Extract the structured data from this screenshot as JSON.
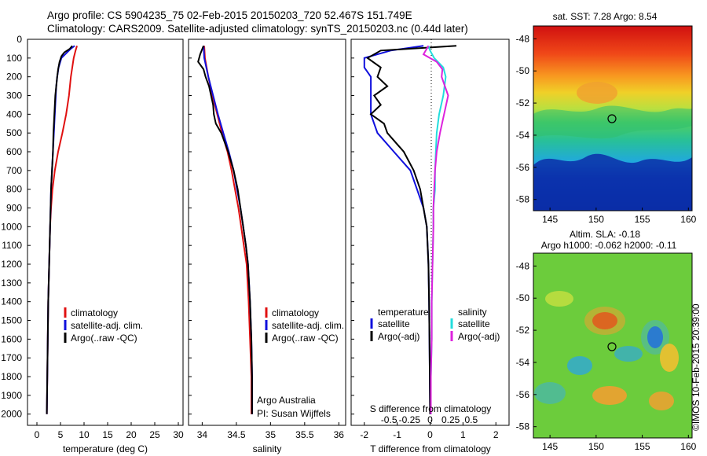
{
  "header": {
    "line1": "Argo profile: CS 5904235_75 02-Feb-2015 20150203_720 52.467S 151.749E",
    "line2": "Climatology: CARS2009. Satellite-adjusted climatology: synTS_20150203.nc (0.44d later)"
  },
  "colors": {
    "climatology": "#e01010",
    "satellite": "#1010dd",
    "argo": "#000000",
    "satellite_salinity": "#22dddd",
    "argo_salinity": "#dd22dd"
  },
  "depth_axis": {
    "ticks": [
      "0",
      "100",
      "200",
      "300",
      "400",
      "500",
      "600",
      "700",
      "800",
      "900",
      "1000",
      "1100",
      "1200",
      "1300",
      "1400",
      "1500",
      "1600",
      "1700",
      "1800",
      "1900",
      "2000"
    ]
  },
  "chart_data": [
    {
      "type": "line",
      "name": "temperature",
      "xlabel": "temperature (deg C)",
      "xlim": [
        -2,
        31
      ],
      "ylim": [
        0,
        2060
      ],
      "xticks": [
        "0",
        "5",
        "10",
        "15",
        "20",
        "25",
        "30"
      ],
      "legend": [
        "climatology",
        "satellite-adj. clim.",
        "Argo(..raw -QC)"
      ],
      "series": [
        {
          "name": "climatology",
          "depth": [
            35,
            60,
            100,
            150,
            200,
            300,
            400,
            500,
            600,
            700,
            800,
            900,
            1000,
            1200,
            1400,
            1600,
            1800,
            2000
          ],
          "values": [
            8.5,
            8.2,
            7.8,
            7.5,
            7.2,
            6.8,
            6.2,
            5.4,
            4.5,
            3.8,
            3.3,
            3.0,
            2.8,
            2.6,
            2.4,
            2.3,
            2.2,
            2.1
          ]
        },
        {
          "name": "satellite-adj. clim.",
          "depth": [
            35,
            50,
            80,
            100,
            150,
            200,
            250,
            300,
            400,
            500,
            600,
            700,
            800,
            900,
            1000,
            1200,
            1400,
            1600,
            1800,
            2000
          ],
          "values": [
            8.0,
            7.2,
            6.0,
            5.2,
            4.6,
            4.3,
            4.1,
            4.0,
            3.8,
            3.6,
            3.4,
            3.2,
            3.0,
            2.9,
            2.8,
            2.6,
            2.4,
            2.3,
            2.2,
            2.1
          ]
        },
        {
          "name": "Argo(..raw -QC)",
          "depth": [
            35,
            50,
            70,
            90,
            120,
            160,
            200,
            250,
            300,
            400,
            500,
            600,
            700,
            800,
            900,
            1000,
            1200,
            1400,
            1600,
            1800,
            2000
          ],
          "values": [
            7.5,
            7.0,
            5.8,
            5.2,
            4.8,
            4.5,
            4.3,
            4.1,
            3.9,
            3.7,
            3.5,
            3.4,
            3.2,
            3.0,
            2.9,
            2.8,
            2.6,
            2.4,
            2.3,
            2.2,
            2.1
          ]
        }
      ]
    },
    {
      "type": "line",
      "name": "salinity",
      "xlabel": "salinity",
      "xlim": [
        33.8,
        36.1
      ],
      "ylim": [
        0,
        2060
      ],
      "xticks": [
        "34",
        "34.5",
        "35",
        "35.5",
        "36"
      ],
      "legend": [
        "climatology",
        "satellite-adj. clim.",
        "Argo(..raw -QC)"
      ],
      "annotation": [
        "Argo Australia",
        "PI: Susan Wijffels"
      ],
      "series": [
        {
          "name": "climatology",
          "depth": [
            35,
            100,
            200,
            300,
            400,
            500,
            600,
            700,
            800,
            900,
            1000,
            1100,
            1200,
            1400,
            1600,
            1800,
            2000
          ],
          "values": [
            34.03,
            34.04,
            34.09,
            34.15,
            34.22,
            34.29,
            34.37,
            34.43,
            34.48,
            34.53,
            34.57,
            34.61,
            34.65,
            34.68,
            34.7,
            34.72,
            34.72
          ]
        },
        {
          "name": "satellite-adj. clim.",
          "depth": [
            35,
            100,
            200,
            300,
            400,
            500,
            600,
            700,
            800,
            900,
            1000,
            1100,
            1200,
            1400,
            1600,
            1800,
            2000
          ],
          "values": [
            34.02,
            34.03,
            34.09,
            34.16,
            34.23,
            34.31,
            34.39,
            34.46,
            34.51,
            34.56,
            34.6,
            34.64,
            34.67,
            34.7,
            34.72,
            34.73,
            34.73
          ]
        },
        {
          "name": "Argo(..raw -QC)",
          "depth": [
            35,
            80,
            120,
            160,
            200,
            250,
            300,
            350,
            400,
            450,
            500,
            600,
            700,
            800,
            900,
            1000,
            1100,
            1200,
            1400,
            1600,
            1800,
            2000
          ],
          "values": [
            34.02,
            33.97,
            33.94,
            34.02,
            34.05,
            34.1,
            34.13,
            34.16,
            34.17,
            34.2,
            34.28,
            34.38,
            34.46,
            34.52,
            34.56,
            34.6,
            34.64,
            34.67,
            34.7,
            34.72,
            34.73,
            34.73
          ]
        }
      ]
    },
    {
      "type": "line",
      "name": "differences",
      "xlabel": "T difference from climatology",
      "xlabel2": "S difference from climatology",
      "xlim": [
        -2.4,
        2.4
      ],
      "ylim": [
        0,
        2060
      ],
      "xticks": [
        "-2",
        "-1",
        "0",
        "1",
        "2"
      ],
      "xticks2": [
        "-0.5",
        "-0.25",
        "0",
        "0.25",
        "0.5"
      ],
      "legend_t_title": "temperature",
      "legend_s_title": "salinity",
      "legend_t": [
        "satellite",
        "Argo(-adj)"
      ],
      "legend_s": [
        "satellite",
        "Argo(-adj)"
      ],
      "series": [
        {
          "name": "T satellite",
          "depth": [
            35,
            60,
            100,
            150,
            200,
            300,
            400,
            500,
            600,
            700,
            800,
            900,
            1000,
            1200,
            1400,
            1600,
            1800,
            2000
          ],
          "values": [
            -0.2,
            -1.2,
            -2.0,
            -2.0,
            -1.8,
            -1.8,
            -1.8,
            -1.6,
            -1.1,
            -0.6,
            -0.4,
            -0.2,
            -0.1,
            -0.05,
            -0.03,
            -0.02,
            -0.01,
            0.0
          ]
        },
        {
          "name": "T Argo(-adj)",
          "depth": [
            35,
            60,
            100,
            150,
            200,
            250,
            300,
            350,
            400,
            450,
            500,
            600,
            700,
            800,
            900,
            1000,
            1200,
            1400,
            1600,
            1800,
            2000
          ],
          "values": [
            0.8,
            -1.5,
            -1.9,
            -1.5,
            -1.6,
            -1.3,
            -1.7,
            -1.5,
            -1.8,
            -1.4,
            -1.3,
            -0.8,
            -0.5,
            -0.3,
            -0.2,
            -0.1,
            -0.05,
            -0.03,
            -0.02,
            -0.01,
            0.0
          ]
        },
        {
          "name": "S satellite",
          "depth": [
            35,
            60,
            100,
            150,
            200,
            300,
            400,
            500,
            600,
            700,
            800,
            900,
            1000,
            1200,
            1400,
            1600,
            1800,
            2000
          ],
          "values": [
            -0.02,
            0.0,
            0.05,
            0.16,
            0.19,
            0.16,
            0.11,
            0.08,
            0.07,
            0.06,
            0.06,
            0.04,
            0.04,
            0.03,
            0.02,
            0.02,
            0.01,
            0.01
          ]
        },
        {
          "name": "S Argo(-adj)",
          "depth": [
            35,
            80,
            120,
            160,
            200,
            300,
            400,
            500,
            600,
            700,
            800,
            900,
            1000,
            1200,
            1400,
            1600,
            1800,
            2000
          ],
          "values": [
            -0.02,
            -0.08,
            0.08,
            0.15,
            0.14,
            0.22,
            0.17,
            0.12,
            0.08,
            0.06,
            0.05,
            0.04,
            0.04,
            0.03,
            0.02,
            0.02,
            0.01,
            0.01
          ]
        }
      ]
    }
  ],
  "maps": {
    "sst": {
      "title": "sat. SST: 7.28 Argo: 8.54",
      "xticks": [
        "145",
        "150",
        "155",
        "160"
      ],
      "yticks": [
        "-48",
        "-50",
        "-52",
        "-54",
        "-56",
        "-58"
      ]
    },
    "sla": {
      "title_line1": "Altim. SLA: -0.18",
      "title_line2": "Argo h1000: -0.062 h2000: -0.11",
      "xticks": [
        "145",
        "150",
        "155",
        "160"
      ],
      "yticks": [
        "-48",
        "-50",
        "-52",
        "-54",
        "-56",
        "-58"
      ]
    }
  },
  "credit": "©IMOS 10-Feb-2015 20:39:00"
}
